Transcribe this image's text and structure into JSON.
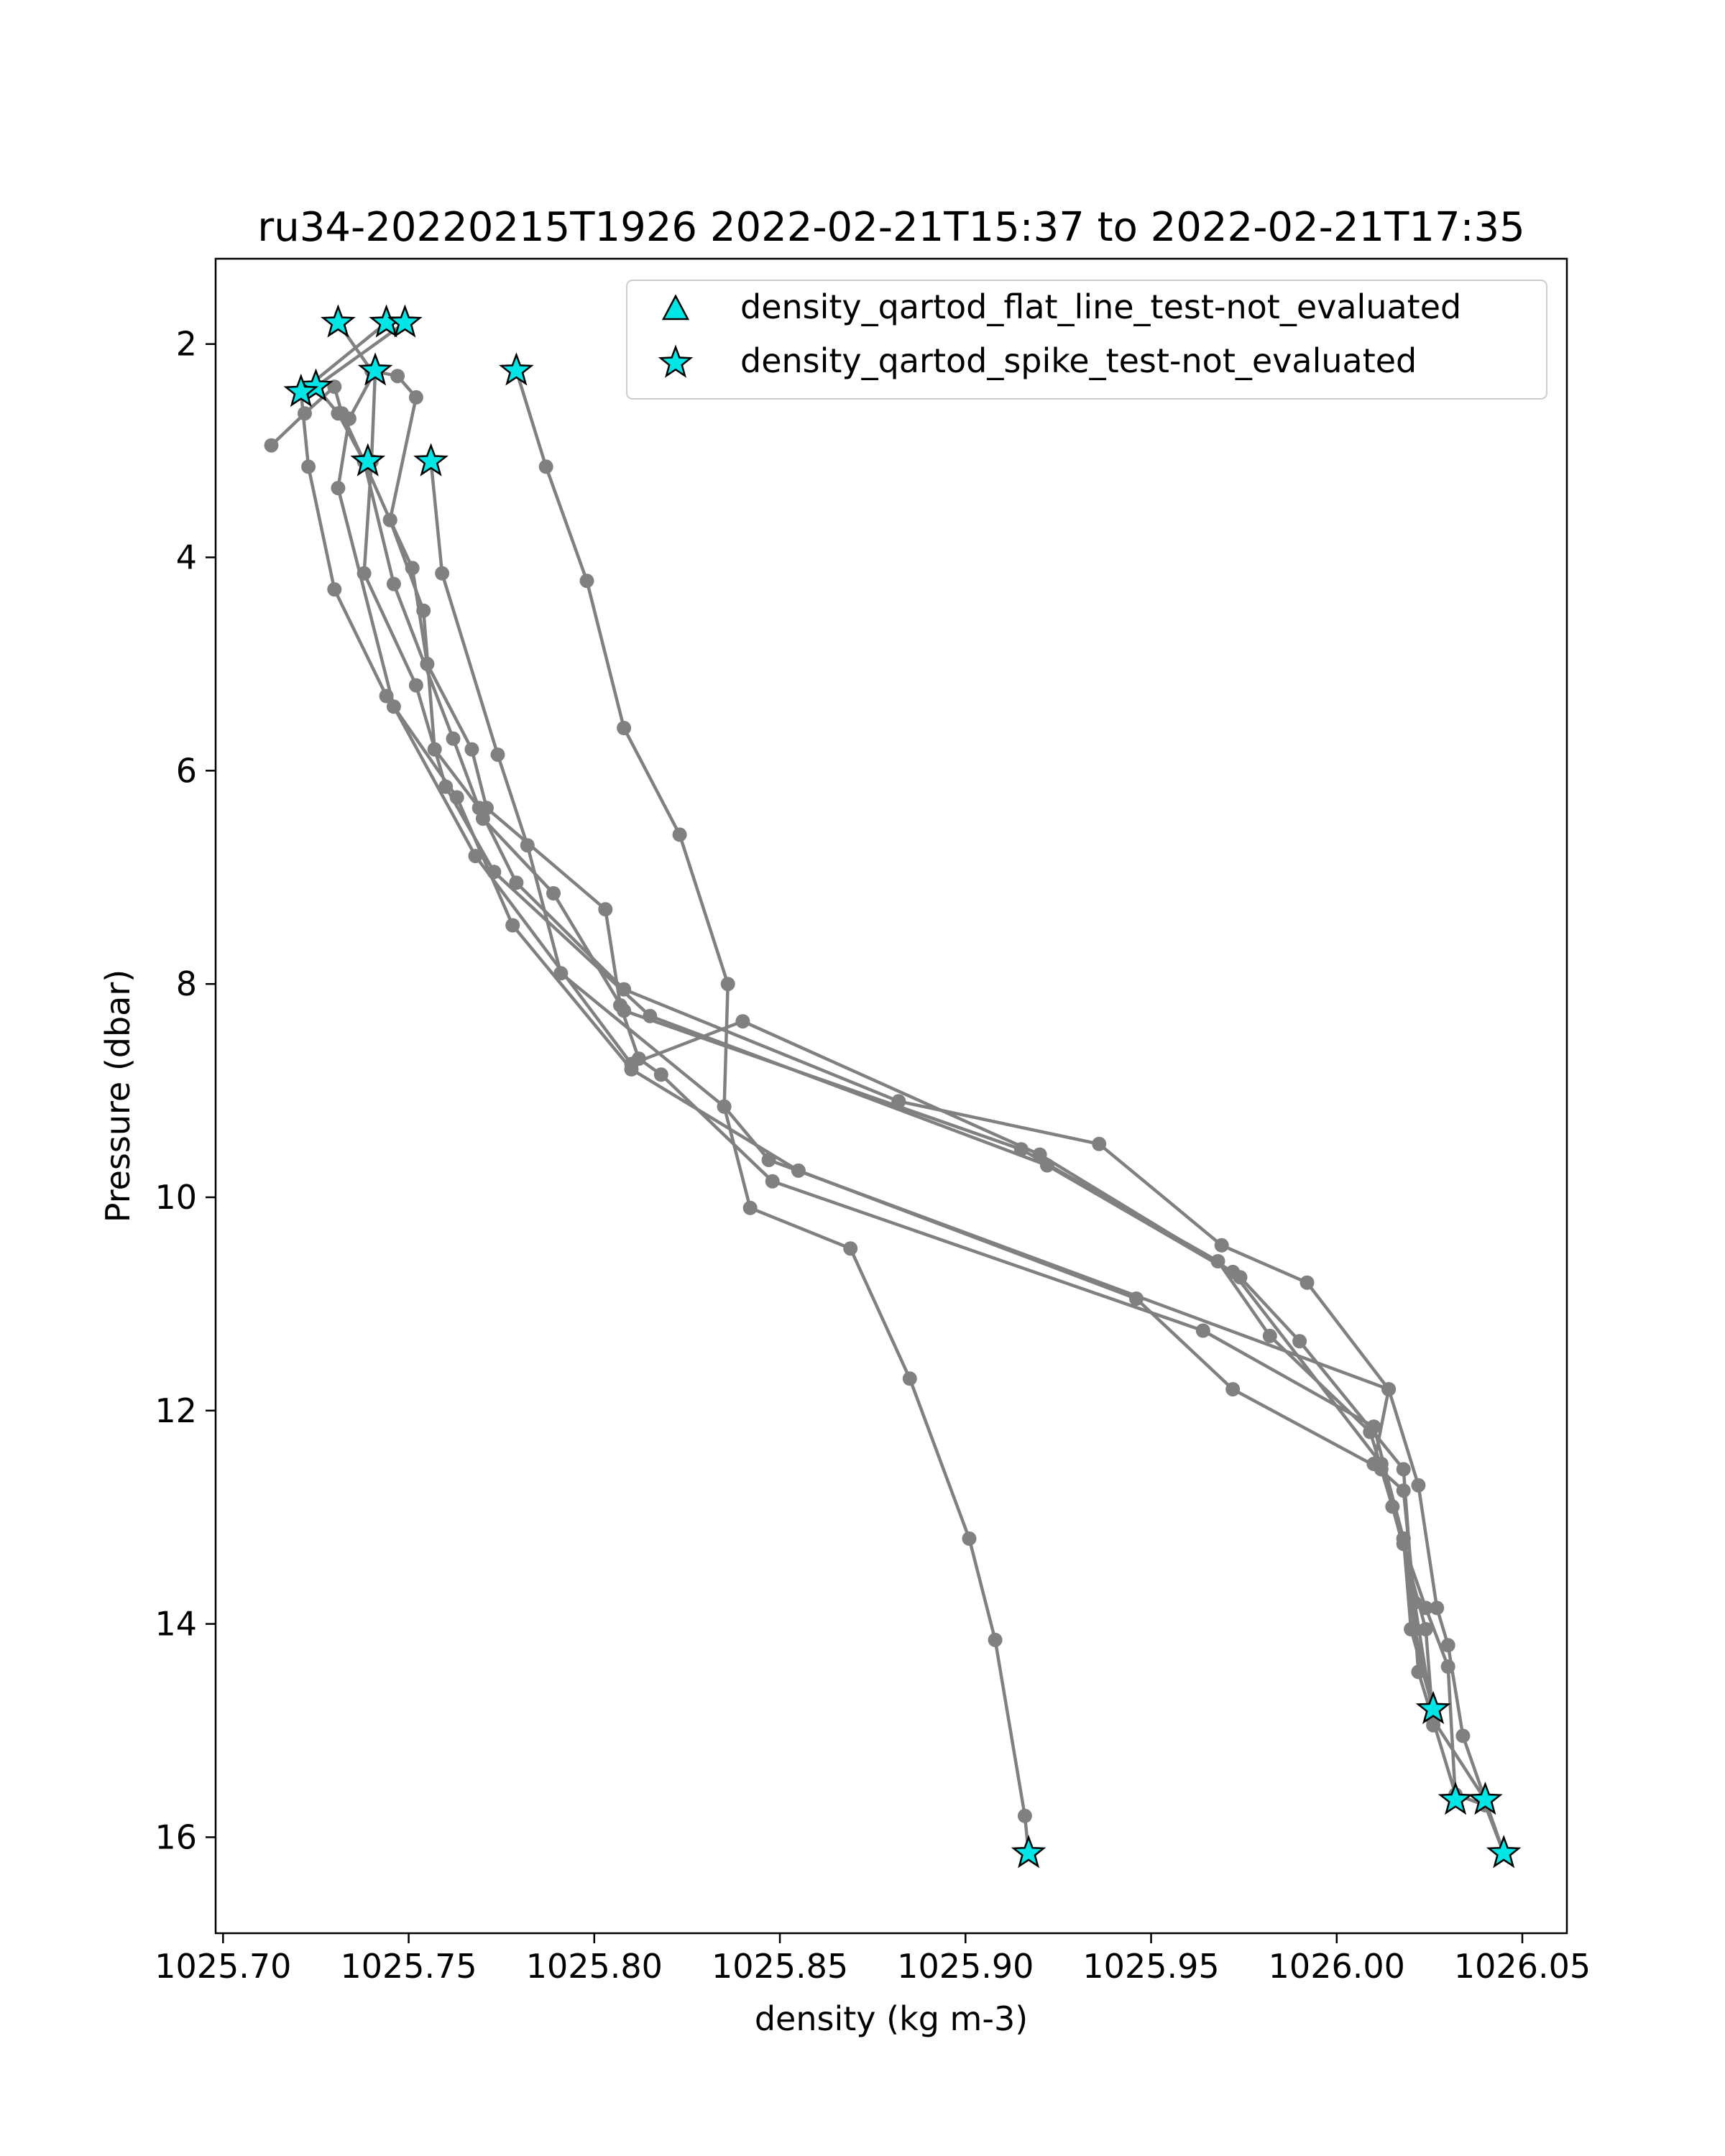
{
  "chart_data": {
    "type": "line",
    "title": "ru34-20220215T1926 2022-02-21T15:37 to 2022-02-21T17:35",
    "xlabel": "density (kg m-3)",
    "ylabel": "Pressure (dbar)",
    "xlim": [
      1025.698,
      1026.062
    ],
    "ylim": [
      16.9,
      1.2
    ],
    "y_inverted": true,
    "grid": false,
    "legend_position": "top-right",
    "x_ticks": [
      "1025.70",
      "1025.75",
      "1025.80",
      "1025.85",
      "1025.90",
      "1025.95",
      "1026.00",
      "1026.05"
    ],
    "y_ticks": [
      "2",
      "4",
      "6",
      "8",
      "10",
      "12",
      "14",
      "16"
    ],
    "line_color": "#808080",
    "marker_color": "#00e5e5",
    "legend": [
      {
        "label": "density_qartod_flat_line_test-not_evaluated",
        "marker": "triangle",
        "color": "#00e5e5"
      },
      {
        "label": "density_qartod_spike_test-not_evaluated",
        "marker": "star",
        "color": "#00e5e5"
      }
    ],
    "series": [
      {
        "points": [
          [
            1025.779,
            2.25
          ],
          [
            1025.787,
            3.15
          ],
          [
            1025.798,
            4.22
          ],
          [
            1025.808,
            5.6
          ],
          [
            1025.823,
            6.6
          ],
          [
            1025.836,
            8.0
          ],
          [
            1025.835,
            9.15
          ],
          [
            1025.842,
            10.1
          ],
          [
            1025.869,
            10.48
          ],
          [
            1025.885,
            11.7
          ],
          [
            1025.901,
            13.2
          ],
          [
            1025.908,
            14.15
          ],
          [
            1025.916,
            15.8
          ],
          [
            1025.917,
            16.15
          ]
        ]
      },
      {
        "points": [
          [
            1025.749,
            1.8
          ],
          [
            1025.725,
            2.4
          ],
          [
            1025.731,
            2.65
          ],
          [
            1025.738,
            3.1
          ],
          [
            1025.745,
            3.65
          ],
          [
            1025.754,
            4.5
          ],
          [
            1025.757,
            5.8
          ],
          [
            1025.769,
            6.35
          ],
          [
            1025.779,
            7.05
          ],
          [
            1025.808,
            8.05
          ],
          [
            1025.882,
            9.1
          ],
          [
            1025.936,
            9.5
          ],
          [
            1025.969,
            10.45
          ],
          [
            1025.992,
            10.8
          ],
          [
            1026.014,
            11.8
          ],
          [
            1026.022,
            12.7
          ],
          [
            1026.027,
            13.85
          ],
          [
            1026.03,
            14.2
          ],
          [
            1026.034,
            15.05
          ],
          [
            1026.045,
            16.15
          ]
        ]
      },
      {
        "points": [
          [
            1025.713,
            2.95
          ],
          [
            1025.722,
            2.65
          ],
          [
            1025.73,
            2.4
          ],
          [
            1025.732,
            2.65
          ],
          [
            1025.738,
            3.1
          ],
          [
            1025.746,
            4.25
          ],
          [
            1025.762,
            5.7
          ],
          [
            1025.77,
            6.45
          ],
          [
            1025.789,
            7.15
          ],
          [
            1025.808,
            8.25
          ],
          [
            1025.915,
            9.55
          ],
          [
            1025.968,
            10.6
          ],
          [
            1025.982,
            11.3
          ],
          [
            1026.009,
            12.2
          ],
          [
            1026.018,
            13.2
          ],
          [
            1026.021,
            14.05
          ],
          [
            1026.026,
            14.8
          ]
        ]
      },
      {
        "points": [
          [
            1025.744,
            1.8
          ],
          [
            1025.721,
            2.45
          ],
          [
            1025.723,
            3.15
          ],
          [
            1025.73,
            4.3
          ],
          [
            1025.744,
            5.3
          ],
          [
            1025.763,
            6.25
          ],
          [
            1025.778,
            7.45
          ],
          [
            1025.81,
            8.8
          ],
          [
            1025.855,
            9.75
          ],
          [
            1025.946,
            10.95
          ],
          [
            1025.972,
            11.8
          ],
          [
            1026.012,
            12.55
          ],
          [
            1026.018,
            13.25
          ],
          [
            1026.024,
            13.85
          ],
          [
            1026.03,
            14.4
          ],
          [
            1026.032,
            15.65
          ]
        ]
      },
      {
        "points": [
          [
            1025.741,
            2.25
          ],
          [
            1025.74,
            3.1
          ],
          [
            1025.738,
            4.15
          ],
          [
            1025.752,
            5.2
          ],
          [
            1025.76,
            6.15
          ],
          [
            1025.773,
            6.95
          ],
          [
            1025.815,
            8.3
          ],
          [
            1025.922,
            9.7
          ],
          [
            1025.974,
            10.75
          ],
          [
            1025.99,
            11.35
          ],
          [
            1026.018,
            12.55
          ],
          [
            1026.022,
            14.45
          ],
          [
            1026.032,
            15.6
          ],
          [
            1026.04,
            15.7
          ],
          [
            1026.045,
            16.15
          ]
        ]
      },
      {
        "points": [
          [
            1025.731,
            1.8
          ],
          [
            1025.74,
            2.25
          ],
          [
            1025.747,
            2.3
          ],
          [
            1025.752,
            2.5
          ],
          [
            1025.745,
            3.65
          ],
          [
            1025.751,
            4.1
          ],
          [
            1025.755,
            5.0
          ],
          [
            1025.767,
            5.8
          ],
          [
            1025.771,
            6.35
          ],
          [
            1025.803,
            7.3
          ],
          [
            1025.807,
            8.2
          ],
          [
            1025.812,
            8.7
          ],
          [
            1025.818,
            8.85
          ],
          [
            1025.848,
            9.85
          ],
          [
            1025.964,
            11.25
          ],
          [
            1026.01,
            12.15
          ],
          [
            1026.018,
            13.2
          ],
          [
            1026.02,
            14.05
          ],
          [
            1026.026,
            14.8
          ]
        ]
      },
      {
        "points": [
          [
            1025.756,
            3.1
          ],
          [
            1025.759,
            4.15
          ],
          [
            1025.774,
            5.85
          ],
          [
            1025.782,
            6.7
          ],
          [
            1025.791,
            7.9
          ],
          [
            1025.835,
            9.15
          ],
          [
            1025.847,
            9.65
          ],
          [
            1026.014,
            11.8
          ],
          [
            1026.01,
            12.5
          ],
          [
            1026.018,
            12.75
          ],
          [
            1026.021,
            13.8
          ],
          [
            1026.026,
            14.9
          ],
          [
            1026.04,
            15.65
          ]
        ]
      },
      {
        "points": [
          [
            1025.741,
            2.25
          ],
          [
            1025.734,
            2.7
          ],
          [
            1025.731,
            3.35
          ],
          [
            1025.746,
            5.4
          ],
          [
            1025.768,
            6.8
          ],
          [
            1025.81,
            8.75
          ],
          [
            1025.84,
            8.35
          ],
          [
            1025.92,
            9.6
          ],
          [
            1025.972,
            10.7
          ],
          [
            1026.012,
            12.5
          ],
          [
            1026.015,
            12.9
          ],
          [
            1026.024,
            14.05
          ],
          [
            1026.026,
            14.95
          ]
        ]
      }
    ],
    "spike_test_stars": [
      [
        1025.731,
        1.8
      ],
      [
        1025.744,
        1.8
      ],
      [
        1025.749,
        1.8
      ],
      [
        1025.741,
        2.25
      ],
      [
        1025.779,
        2.25
      ],
      [
        1025.725,
        2.4
      ],
      [
        1025.721,
        2.45
      ],
      [
        1025.739,
        3.1
      ],
      [
        1025.756,
        3.1
      ],
      [
        1026.026,
        14.8
      ],
      [
        1026.032,
        15.65
      ],
      [
        1026.04,
        15.65
      ],
      [
        1025.917,
        16.15
      ],
      [
        1026.045,
        16.15
      ]
    ]
  }
}
